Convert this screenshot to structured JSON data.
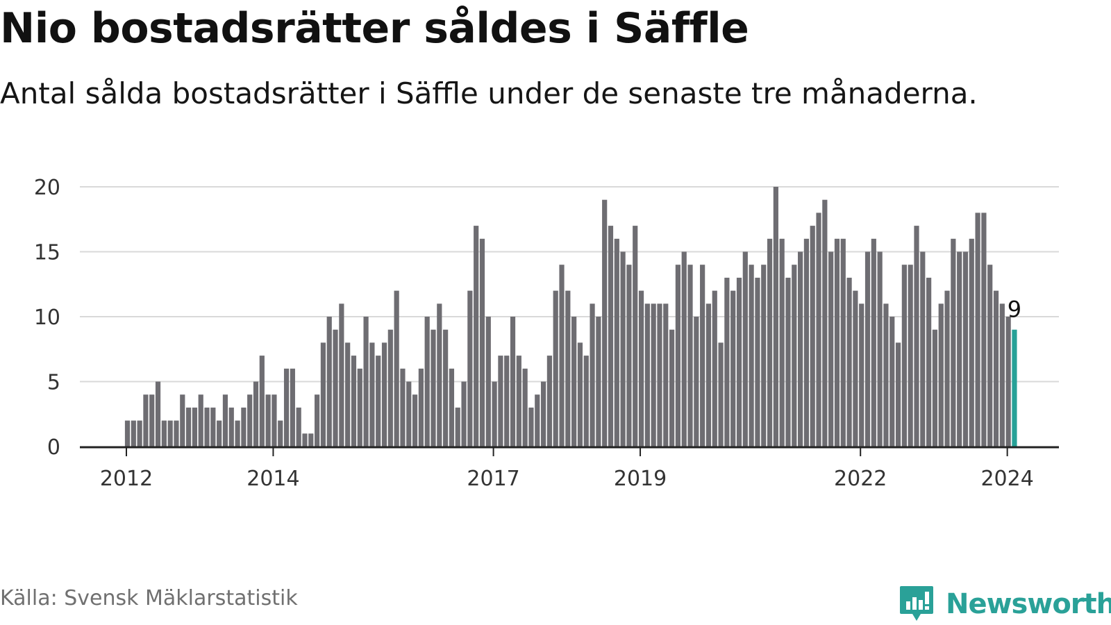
{
  "title": "Nio bostadsrätter såldes i Säffle",
  "subtitle": "Antal sålda bostadsrätter i Säffle under de senaste tre månaderna.",
  "source": "Källa: Svensk Mäklarstatistik",
  "brand": {
    "name": "Newsworthy",
    "icon": "newsworthy-logo-icon",
    "color": "#2aa198"
  },
  "colors": {
    "bar": "#6e6d72",
    "highlight": "#27a197",
    "grid": "#d9d9d9",
    "axis": "#222222"
  },
  "chart_data": {
    "type": "bar",
    "title": "Nio bostadsrätter såldes i Säffle",
    "xlabel": "",
    "ylabel": "",
    "ylim": [
      0,
      20
    ],
    "yticks": [
      0,
      5,
      10,
      15,
      20
    ],
    "xticks": [
      {
        "label": "2012",
        "index": 0
      },
      {
        "label": "2014",
        "index": 24
      },
      {
        "label": "2017",
        "index": 60
      },
      {
        "label": "2019",
        "index": 84
      },
      {
        "label": "2022",
        "index": 120
      },
      {
        "label": "2024",
        "index": 144
      }
    ],
    "start": "2012-01",
    "grid": true,
    "highlight_index": 145,
    "highlight_label": "9",
    "values": [
      2,
      2,
      2,
      4,
      4,
      5,
      2,
      2,
      2,
      4,
      3,
      3,
      4,
      3,
      3,
      2,
      4,
      3,
      2,
      3,
      4,
      5,
      7,
      4,
      4,
      2,
      6,
      6,
      3,
      1,
      1,
      4,
      8,
      10,
      9,
      11,
      8,
      7,
      6,
      10,
      8,
      7,
      8,
      9,
      12,
      6,
      5,
      4,
      6,
      10,
      9,
      11,
      9,
      6,
      3,
      5,
      12,
      17,
      16,
      10,
      5,
      7,
      7,
      10,
      7,
      6,
      3,
      4,
      5,
      7,
      12,
      14,
      12,
      10,
      8,
      7,
      11,
      10,
      19,
      17,
      16,
      15,
      14,
      17,
      12,
      11,
      11,
      11,
      11,
      9,
      14,
      15,
      14,
      10,
      14,
      11,
      12,
      8,
      13,
      12,
      13,
      15,
      14,
      13,
      14,
      16,
      20,
      16,
      13,
      14,
      15,
      16,
      17,
      18,
      19,
      15,
      16,
      16,
      13,
      12,
      11,
      15,
      16,
      15,
      11,
      10,
      8,
      14,
      14,
      17,
      15,
      13,
      9,
      11,
      12,
      16,
      15,
      15,
      16,
      18,
      18,
      14,
      12,
      11,
      10,
      9
    ]
  }
}
